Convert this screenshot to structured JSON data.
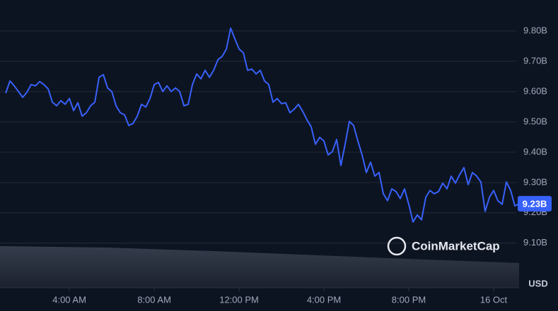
{
  "chart_data": {
    "type": "line",
    "x": [
      1,
      1.2,
      1.4,
      1.6,
      1.8,
      2,
      2.2,
      2.4,
      2.6,
      2.8,
      3,
      3.2,
      3.4,
      3.6,
      3.8,
      4,
      4.2,
      4.4,
      4.6,
      4.8,
      5,
      5.2,
      5.4,
      5.6,
      5.8,
      6,
      6.2,
      6.4,
      6.6,
      6.8,
      7,
      7.2,
      7.4,
      7.6,
      7.8,
      8,
      8.2,
      8.4,
      8.6,
      8.8,
      9,
      9.2,
      9.4,
      9.6,
      9.8,
      10,
      10.2,
      10.4,
      10.6,
      10.8,
      11,
      11.2,
      11.4,
      11.6,
      11.8,
      12,
      12.2,
      12.4,
      12.6,
      12.8,
      13,
      13.2,
      13.4,
      13.6,
      13.8,
      14,
      14.2,
      14.4,
      14.6,
      14.8,
      15,
      15.2,
      15.4,
      15.6,
      15.8,
      16,
      16.2,
      16.4,
      16.6,
      16.8,
      17,
      17.2,
      17.4,
      17.6,
      17.8,
      18,
      18.2,
      18.4,
      18.6,
      18.8,
      19,
      19.2,
      19.4,
      19.6,
      19.8,
      20,
      20.2,
      20.4,
      20.6,
      20.8,
      21,
      21.2,
      21.4,
      21.6,
      21.8,
      22,
      22.2,
      22.4,
      22.6,
      22.8,
      23,
      23.2,
      23.4,
      23.6,
      23.8,
      24,
      24.2,
      24.4,
      24.6,
      24.8,
      25,
      25.2
    ],
    "series": [
      {
        "color": "#3861fb",
        "values": [
          9.595,
          9.635,
          9.619,
          9.6,
          9.581,
          9.598,
          9.623,
          9.619,
          9.633,
          9.623,
          9.609,
          9.565,
          9.553,
          9.57,
          9.558,
          9.577,
          9.537,
          9.563,
          9.519,
          9.53,
          9.553,
          9.565,
          9.647,
          9.656,
          9.612,
          9.6,
          9.553,
          9.53,
          9.523,
          9.488,
          9.495,
          9.519,
          9.558,
          9.549,
          9.577,
          9.623,
          9.63,
          9.6,
          9.619,
          9.6,
          9.612,
          9.6,
          9.553,
          9.558,
          9.623,
          9.658,
          9.642,
          9.67,
          9.647,
          9.67,
          9.705,
          9.716,
          9.74,
          9.809,
          9.774,
          9.74,
          9.728,
          9.67,
          9.674,
          9.658,
          9.67,
          9.635,
          9.623,
          9.565,
          9.577,
          9.56,
          9.563,
          9.53,
          9.542,
          9.558,
          9.535,
          9.507,
          9.484,
          9.426,
          9.449,
          9.437,
          9.391,
          9.402,
          9.442,
          9.356,
          9.426,
          9.502,
          9.488,
          9.437,
          9.391,
          9.333,
          9.367,
          9.321,
          9.333,
          9.263,
          9.24,
          9.279,
          9.27,
          9.247,
          9.279,
          9.228,
          9.17,
          9.193,
          9.177,
          9.251,
          9.274,
          9.263,
          9.27,
          9.298,
          9.279,
          9.321,
          9.298,
          9.326,
          9.349,
          9.293,
          9.333,
          9.321,
          9.302,
          9.205,
          9.251,
          9.274,
          9.24,
          9.228,
          9.302,
          9.274,
          9.223,
          9.23
        ]
      }
    ],
    "xlim": [
      0.73,
      25.2
    ],
    "xticks": [
      {
        "value": 4,
        "label": "4:00 AM"
      },
      {
        "value": 8,
        "label": "8:00 AM"
      },
      {
        "value": 12,
        "label": "12:00 PM"
      },
      {
        "value": 16,
        "label": "4:00 PM"
      },
      {
        "value": 20,
        "label": "8:00 PM"
      },
      {
        "value": 24,
        "label": "16 Oct"
      }
    ],
    "ylim": [
      8.953,
      9.902
    ],
    "yticks": [
      {
        "value": 9.1,
        "label": "9.10B"
      },
      {
        "value": 9.2,
        "label": "9.20B"
      },
      {
        "value": 9.3,
        "label": "9.30B"
      },
      {
        "value": 9.4,
        "label": "9.40B"
      },
      {
        "value": 9.5,
        "label": "9.50B"
      },
      {
        "value": 9.6,
        "label": "9.60B"
      },
      {
        "value": 9.7,
        "label": "9.70B"
      },
      {
        "value": 9.8,
        "label": "9.80B"
      }
    ],
    "ylabel": "USD",
    "current": {
      "value": 9.23,
      "label": "9.23B"
    },
    "watermark": "CoinMarketCap",
    "grid": true
  }
}
